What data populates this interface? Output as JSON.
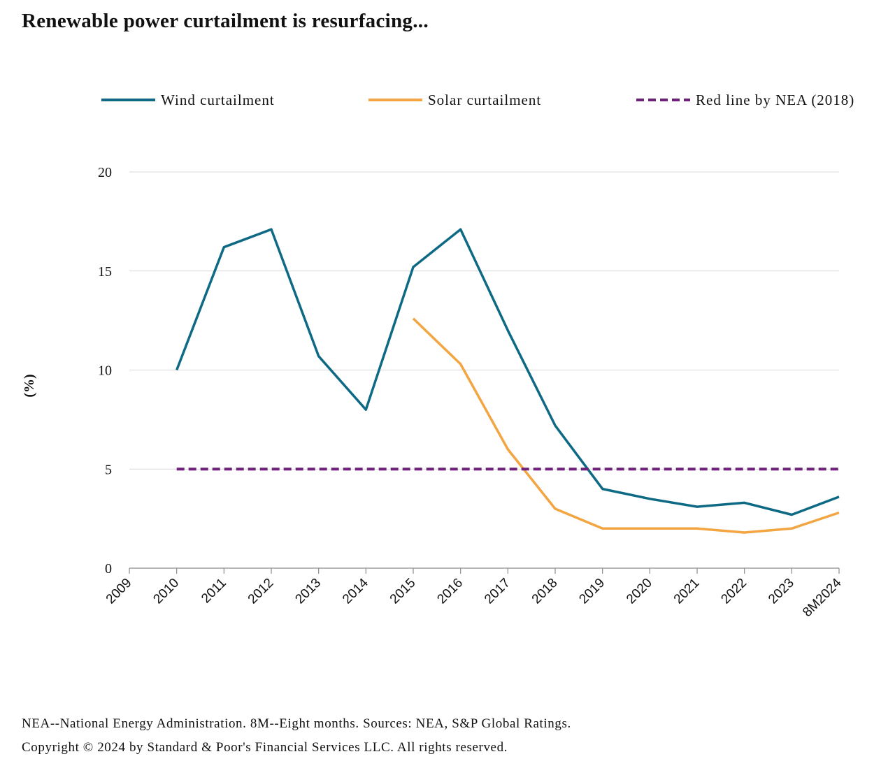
{
  "chart_data": {
    "type": "line",
    "title": "Renewable power curtailment is resurfacing...",
    "xlabel": "",
    "ylabel": "(%)",
    "categories": [
      "2009",
      "2010",
      "2011",
      "2012",
      "2013",
      "2014",
      "2015",
      "2016",
      "2017",
      "2018",
      "2019",
      "2020",
      "2021",
      "2022",
      "2023",
      "8M2024"
    ],
    "ylim": [
      0,
      20
    ],
    "yticks": [
      0,
      5,
      10,
      15,
      20
    ],
    "grid": true,
    "legend_position": "top",
    "series": [
      {
        "name": "Wind curtailment",
        "color": "#0e6a84",
        "style": "solid",
        "values": [
          null,
          10.0,
          16.2,
          17.1,
          10.7,
          8.0,
          15.2,
          17.1,
          12.0,
          7.2,
          4.0,
          3.5,
          3.1,
          3.3,
          2.7,
          3.6
        ]
      },
      {
        "name": "Solar curtailment",
        "color": "#f2a541",
        "style": "solid",
        "values": [
          null,
          null,
          null,
          null,
          null,
          null,
          12.6,
          10.3,
          6.0,
          3.0,
          2.0,
          2.0,
          2.0,
          1.8,
          2.0,
          2.8
        ]
      },
      {
        "name": "Red line by NEA (2018)",
        "color": "#6e2178",
        "style": "dashed",
        "values": [
          null,
          5,
          5,
          5,
          5,
          5,
          5,
          5,
          5,
          5,
          5,
          5,
          5,
          5,
          5,
          5
        ]
      }
    ]
  },
  "footnotes": [
    "NEA--National Energy Administration. 8M--Eight months. Sources: NEA, S&P Global Ratings.",
    "Copyright © 2024 by Standard & Poor's Financial Services LLC. All rights reserved."
  ]
}
